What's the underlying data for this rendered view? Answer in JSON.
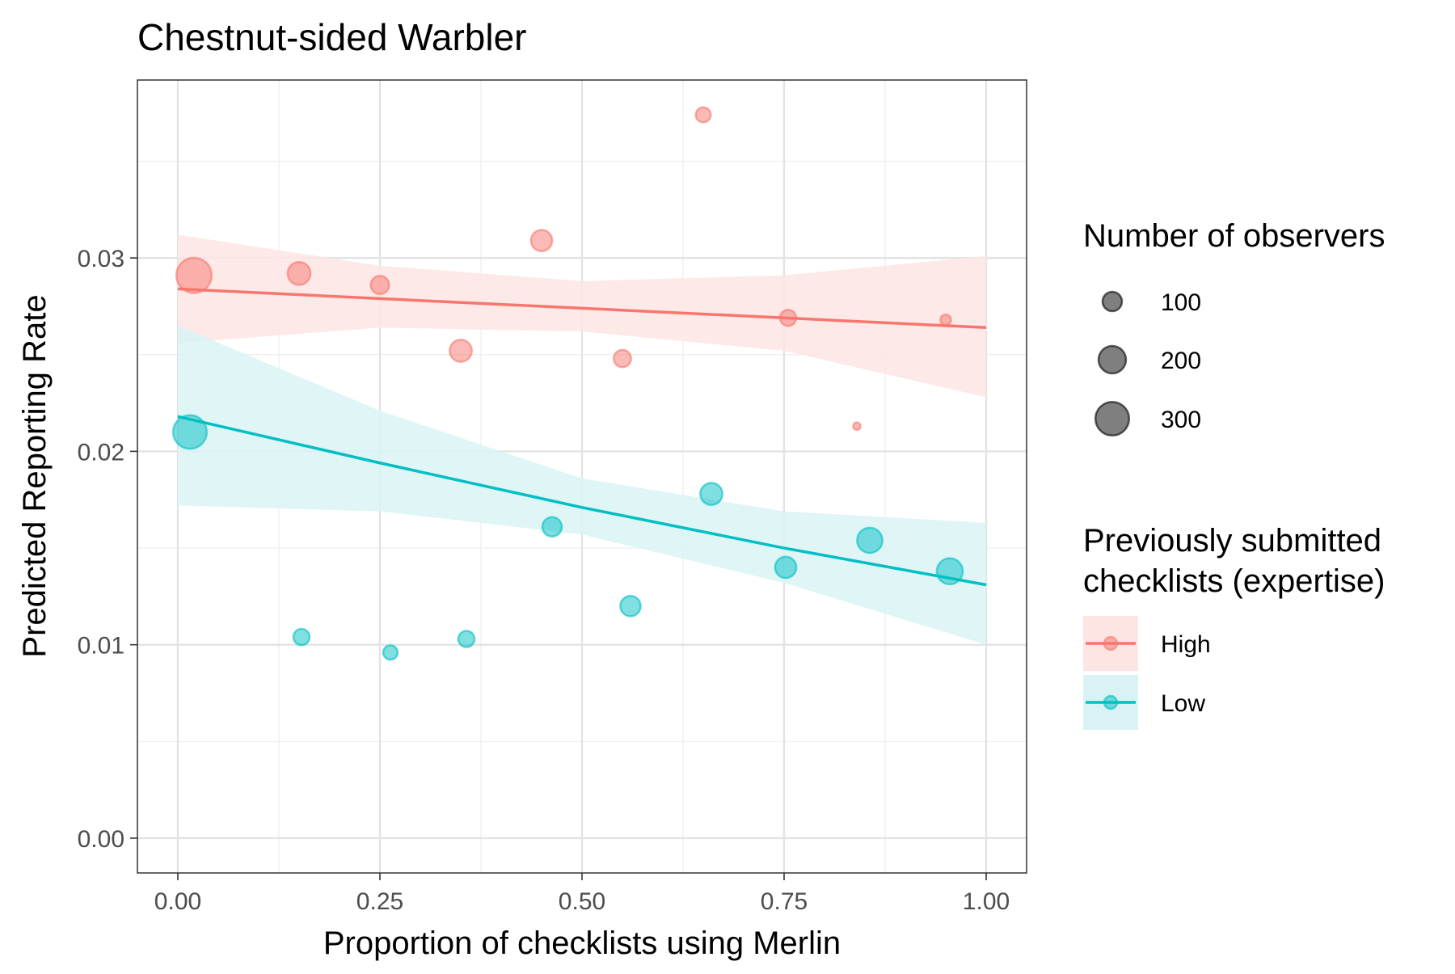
{
  "chart_data": {
    "type": "scatter",
    "title": "Chestnut-sided Warbler",
    "xlabel": "Proportion of checklists using Merlin",
    "ylabel": "Predicted Reporting Rate",
    "xlim": [
      -0.05,
      1.05
    ],
    "ylim": [
      -0.0018,
      0.0392
    ],
    "x_ticks": [
      0,
      0.25,
      0.5,
      0.75,
      1
    ],
    "x_tick_labels": [
      "0.00",
      "0.25",
      "0.50",
      "0.75",
      "1.00"
    ],
    "y_ticks": [
      0,
      0.01,
      0.02,
      0.03
    ],
    "y_tick_labels": [
      "0.00",
      "0.01",
      "0.02",
      "0.03"
    ],
    "grid": true,
    "legend_placement": "right",
    "size_legend": {
      "title": "Number of observers",
      "entries": [
        {
          "label": "100",
          "value": 100
        },
        {
          "label": "200",
          "value": 200
        },
        {
          "label": "300",
          "value": 300
        }
      ]
    },
    "color_legend": {
      "title_lines": [
        "Previously submitted",
        "checklists (expertise)"
      ],
      "entries": [
        {
          "label": "High",
          "color": "#F8766D",
          "fill": "#FDE5E3"
        },
        {
          "label": "Low",
          "color": "#00BFC4",
          "fill": "#D9F3F4"
        }
      ]
    },
    "series": [
      {
        "name": "High",
        "color": "#F8766D",
        "points": [
          {
            "x": 0.02,
            "y": 0.0291,
            "n": 330
          },
          {
            "x": 0.15,
            "y": 0.0292,
            "n": 140
          },
          {
            "x": 0.25,
            "y": 0.0286,
            "n": 90
          },
          {
            "x": 0.35,
            "y": 0.0252,
            "n": 130
          },
          {
            "x": 0.45,
            "y": 0.0309,
            "n": 120
          },
          {
            "x": 0.55,
            "y": 0.0248,
            "n": 80
          },
          {
            "x": 0.65,
            "y": 0.0374,
            "n": 60
          },
          {
            "x": 0.755,
            "y": 0.0269,
            "n": 70
          },
          {
            "x": 0.84,
            "y": 0.0213,
            "n": 15
          },
          {
            "x": 0.95,
            "y": 0.0268,
            "n": 30
          }
        ],
        "trend": [
          {
            "x": 0,
            "y": 0.0284
          },
          {
            "x": 1,
            "y": 0.0264
          }
        ],
        "ribbon": [
          {
            "x": 0,
            "lo": 0.0256,
            "hi": 0.0312
          },
          {
            "x": 0.25,
            "lo": 0.0264,
            "hi": 0.0296
          },
          {
            "x": 0.5,
            "lo": 0.0262,
            "hi": 0.0288
          },
          {
            "x": 0.75,
            "lo": 0.0252,
            "hi": 0.0291
          },
          {
            "x": 1,
            "lo": 0.0228,
            "hi": 0.0301
          }
        ]
      },
      {
        "name": "Low",
        "color": "#00BFC4",
        "points": [
          {
            "x": 0.015,
            "y": 0.021,
            "n": 300
          },
          {
            "x": 0.153,
            "y": 0.0104,
            "n": 70
          },
          {
            "x": 0.263,
            "y": 0.0096,
            "n": 55
          },
          {
            "x": 0.357,
            "y": 0.0103,
            "n": 70
          },
          {
            "x": 0.463,
            "y": 0.0161,
            "n": 100
          },
          {
            "x": 0.56,
            "y": 0.012,
            "n": 110
          },
          {
            "x": 0.66,
            "y": 0.0178,
            "n": 130
          },
          {
            "x": 0.752,
            "y": 0.014,
            "n": 120
          },
          {
            "x": 0.856,
            "y": 0.0154,
            "n": 170
          },
          {
            "x": 0.955,
            "y": 0.0138,
            "n": 180
          }
        ],
        "trend": [
          {
            "x": 0,
            "y": 0.0218
          },
          {
            "x": 0.25,
            "y": 0.0194
          },
          {
            "x": 0.5,
            "y": 0.0171
          },
          {
            "x": 0.75,
            "y": 0.015
          },
          {
            "x": 1,
            "y": 0.0131
          }
        ],
        "ribbon": [
          {
            "x": 0,
            "lo": 0.0172,
            "hi": 0.0265
          },
          {
            "x": 0.25,
            "lo": 0.0169,
            "hi": 0.0221
          },
          {
            "x": 0.5,
            "lo": 0.0157,
            "hi": 0.0186
          },
          {
            "x": 0.75,
            "lo": 0.0132,
            "hi": 0.0169
          },
          {
            "x": 1,
            "lo": 0.01,
            "hi": 0.0163
          }
        ]
      }
    ]
  }
}
